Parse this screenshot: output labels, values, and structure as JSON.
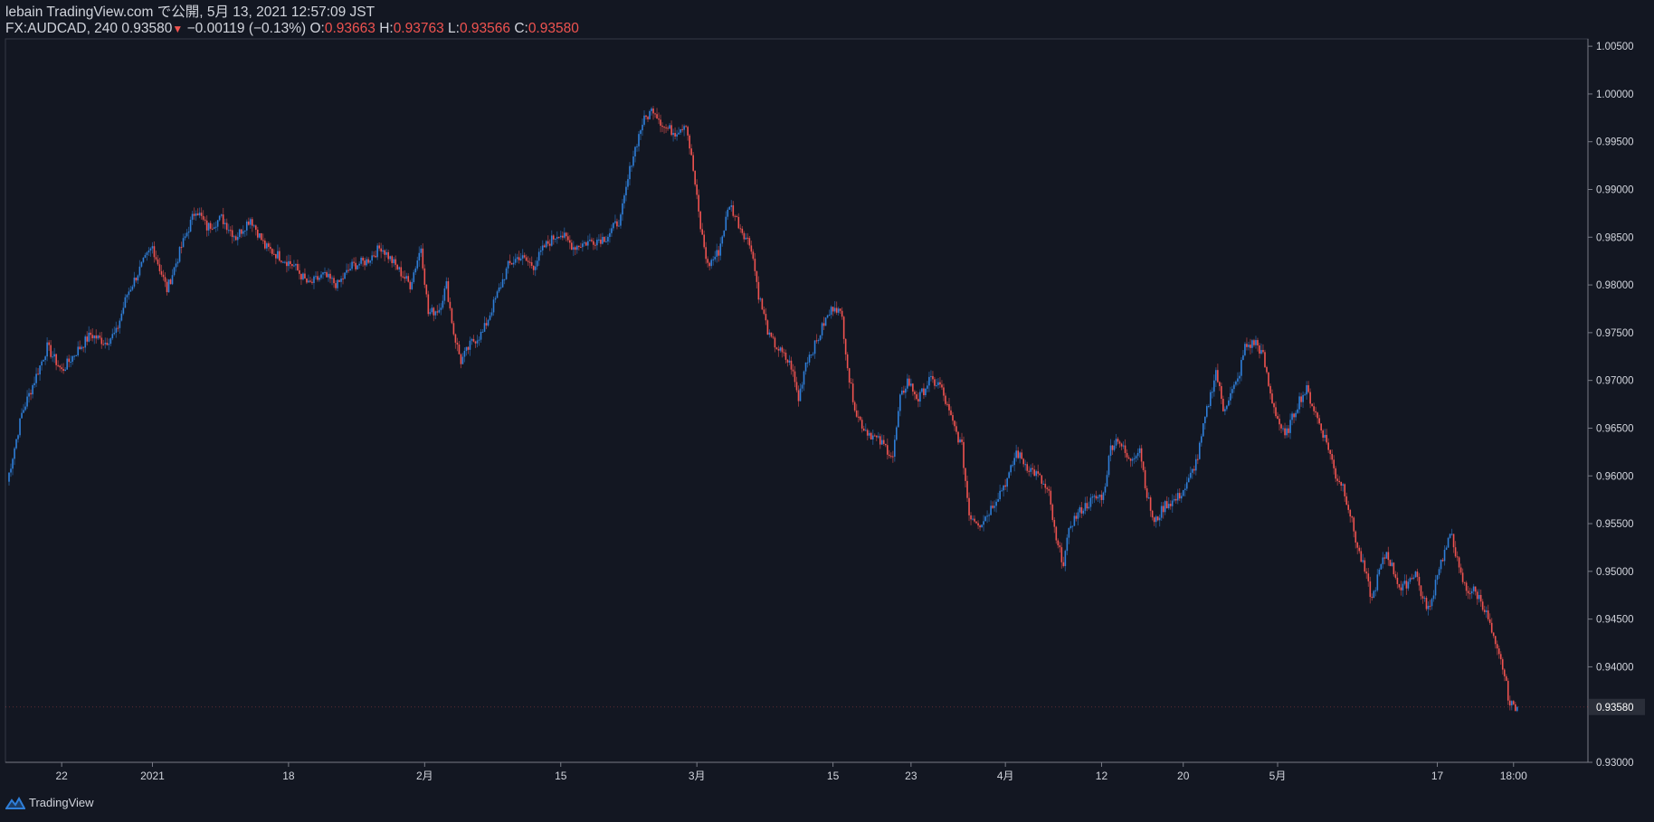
{
  "header": {
    "publisher_line": "lebain TradingView.com で公開, 5月 13, 2021 12:57:09 JST",
    "symbol": "FX:AUDCAD, 240",
    "last": "0.93580",
    "change_arrow": "▼",
    "change": "−0.00119 (−0.13%)",
    "o_label": "O:",
    "o_value": "0.93663",
    "h_label": "H:",
    "h_value": "0.93763",
    "l_label": "L:",
    "l_value": "0.93566",
    "c_label": "C:",
    "c_value": "0.93580"
  },
  "footer": {
    "brand": "TradingView"
  },
  "colors": {
    "up": "#2f7fd9",
    "down": "#ef5350",
    "background": "#131722",
    "text": "#d1d4dc",
    "axis_line": "#787b86",
    "price_tag_bg": "#2a2e39"
  },
  "chart_data": {
    "type": "line",
    "symbol": "FX:AUDCAD",
    "interval": "240",
    "ylim": [
      0.93,
      1.00577
    ],
    "y_ticks": [
      "0.93000",
      "0.93580",
      "0.94000",
      "0.94500",
      "0.95000",
      "0.95500",
      "0.96000",
      "0.96500",
      "0.97000",
      "0.97500",
      "0.98000",
      "0.98500",
      "0.99000",
      "0.99500",
      "1.00000",
      "1.00500"
    ],
    "current_price": "0.93580",
    "x_ticks": [
      {
        "label": "22",
        "i": 30
      },
      {
        "label": "2021",
        "i": 80
      },
      {
        "label": "18",
        "i": 155
      },
      {
        "label": "2月",
        "i": 230
      },
      {
        "label": "15",
        "i": 305
      },
      {
        "label": "3月",
        "i": 380
      },
      {
        "label": "15",
        "i": 455
      },
      {
        "label": "23",
        "i": 498
      },
      {
        "label": "4月",
        "i": 550
      },
      {
        "label": "12",
        "i": 603
      },
      {
        "label": "20",
        "i": 648
      },
      {
        "label": "5月",
        "i": 700
      },
      {
        "label": "17",
        "i": 788
      },
      {
        "label": "18:00",
        "i": 830
      }
    ],
    "total_slots": 870,
    "series": [
      {
        "values": [
          [
            0,
            0.9594
          ],
          [
            8,
            0.9665
          ],
          [
            15,
            0.97
          ],
          [
            22,
            0.9735
          ],
          [
            30,
            0.971
          ],
          [
            38,
            0.973
          ],
          [
            46,
            0.9748
          ],
          [
            54,
            0.974
          ],
          [
            60,
            0.975
          ],
          [
            66,
            0.979
          ],
          [
            74,
            0.982
          ],
          [
            80,
            0.984
          ],
          [
            88,
            0.9795
          ],
          [
            96,
            0.984
          ],
          [
            104,
            0.988
          ],
          [
            110,
            0.986
          ],
          [
            118,
            0.987
          ],
          [
            126,
            0.985
          ],
          [
            134,
            0.987
          ],
          [
            142,
            0.984
          ],
          [
            150,
            0.983
          ],
          [
            158,
            0.982
          ],
          [
            166,
            0.98
          ],
          [
            174,
            0.981
          ],
          [
            182,
            0.98
          ],
          [
            190,
            0.982
          ],
          [
            198,
            0.9825
          ],
          [
            206,
            0.984
          ],
          [
            214,
            0.982
          ],
          [
            222,
            0.98
          ],
          [
            228,
            0.984
          ],
          [
            232,
            0.977
          ],
          [
            238,
            0.9775
          ],
          [
            242,
            0.98
          ],
          [
            246,
            0.975
          ],
          [
            250,
            0.972
          ],
          [
            256,
            0.974
          ],
          [
            262,
            0.975
          ],
          [
            270,
            0.979
          ],
          [
            276,
            0.982
          ],
          [
            282,
            0.983
          ],
          [
            290,
            0.982
          ],
          [
            296,
            0.984
          ],
          [
            304,
            0.9855
          ],
          [
            312,
            0.984
          ],
          [
            320,
            0.9845
          ],
          [
            330,
            0.985
          ],
          [
            338,
            0.987
          ],
          [
            344,
            0.993
          ],
          [
            350,
            0.997
          ],
          [
            356,
            0.9985
          ],
          [
            362,
            0.9965
          ],
          [
            368,
            0.996
          ],
          [
            374,
            0.997
          ],
          [
            378,
            0.992
          ],
          [
            382,
            0.986
          ],
          [
            386,
            0.982
          ],
          [
            392,
            0.9835
          ],
          [
            398,
            0.9885
          ],
          [
            404,
            0.986
          ],
          [
            410,
            0.984
          ],
          [
            414,
            0.979
          ],
          [
            420,
            0.9745
          ],
          [
            426,
            0.973
          ],
          [
            432,
            0.9715
          ],
          [
            436,
            0.968
          ],
          [
            440,
            0.972
          ],
          [
            446,
            0.974
          ],
          [
            450,
            0.976
          ],
          [
            456,
            0.978
          ],
          [
            460,
            0.9765
          ],
          [
            464,
            0.97
          ],
          [
            468,
            0.9665
          ],
          [
            472,
            0.965
          ],
          [
            478,
            0.964
          ],
          [
            484,
            0.963
          ],
          [
            488,
            0.962
          ],
          [
            492,
            0.968
          ],
          [
            496,
            0.97
          ],
          [
            502,
            0.968
          ],
          [
            508,
            0.97
          ],
          [
            514,
            0.9695
          ],
          [
            520,
            0.966
          ],
          [
            526,
            0.963
          ],
          [
            530,
            0.956
          ],
          [
            536,
            0.955
          ],
          [
            540,
            0.956
          ],
          [
            546,
            0.958
          ],
          [
            552,
            0.96
          ],
          [
            556,
            0.9625
          ],
          [
            562,
            0.961
          ],
          [
            568,
            0.96
          ],
          [
            574,
            0.958
          ],
          [
            578,
            0.953
          ],
          [
            582,
            0.951
          ],
          [
            586,
            0.955
          ],
          [
            592,
            0.9565
          ],
          [
            598,
            0.9575
          ],
          [
            604,
            0.958
          ],
          [
            608,
            0.963
          ],
          [
            612,
            0.964
          ],
          [
            618,
            0.9615
          ],
          [
            624,
            0.963
          ],
          [
            628,
            0.958
          ],
          [
            632,
            0.955
          ],
          [
            638,
            0.957
          ],
          [
            644,
            0.9575
          ],
          [
            650,
            0.959
          ],
          [
            656,
            0.962
          ],
          [
            660,
            0.966
          ],
          [
            666,
            0.971
          ],
          [
            670,
            0.967
          ],
          [
            674,
            0.9685
          ],
          [
            678,
            0.97
          ],
          [
            682,
            0.9735
          ],
          [
            688,
            0.974
          ],
          [
            692,
            0.9725
          ],
          [
            696,
            0.9685
          ],
          [
            700,
            0.966
          ],
          [
            704,
            0.964
          ],
          [
            708,
            0.966
          ],
          [
            712,
            0.968
          ],
          [
            716,
            0.969
          ],
          [
            720,
            0.967
          ],
          [
            724,
            0.965
          ],
          [
            728,
            0.963
          ],
          [
            732,
            0.96
          ],
          [
            736,
            0.959
          ],
          [
            740,
            0.956
          ],
          [
            744,
            0.9525
          ],
          [
            748,
            0.95
          ],
          [
            752,
            0.947
          ],
          [
            756,
            0.95
          ],
          [
            760,
            0.952
          ],
          [
            764,
            0.95
          ],
          [
            768,
            0.948
          ],
          [
            772,
            0.949
          ],
          [
            776,
            0.95
          ],
          [
            780,
            0.947
          ],
          [
            784,
            0.946
          ],
          [
            788,
            0.95
          ],
          [
            792,
            0.952
          ],
          [
            796,
            0.954
          ],
          [
            800,
            0.95
          ],
          [
            804,
            0.948
          ],
          [
            808,
            0.948
          ],
          [
            812,
            0.947
          ],
          [
            816,
            0.945
          ],
          [
            820,
            0.942
          ],
          [
            824,
            0.94
          ],
          [
            828,
            0.936
          ],
          [
            832,
            0.9358
          ]
        ]
      }
    ]
  }
}
